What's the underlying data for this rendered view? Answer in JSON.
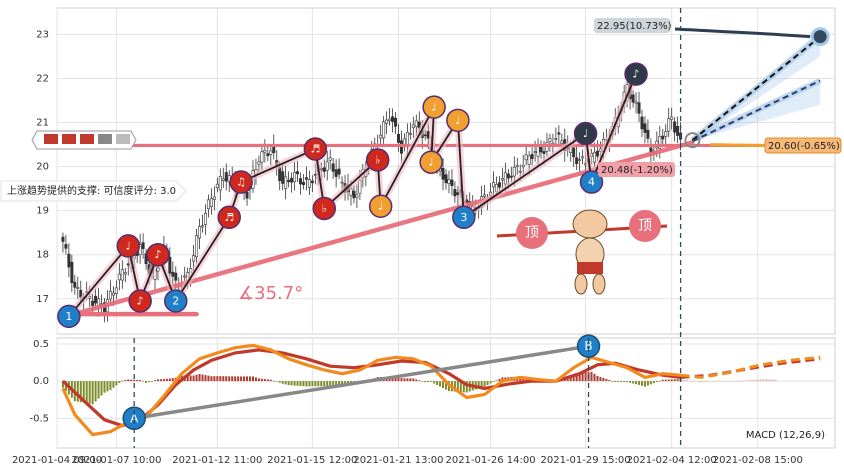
{
  "chart_data": [
    {
      "type": "candlestick",
      "panel": "price",
      "ylim": [
        16.2,
        23.6
      ],
      "yticks": [
        17,
        18,
        19,
        20,
        21,
        22,
        23
      ],
      "grid": true,
      "colors": {
        "up": "#2f2f2f",
        "down": "#2f2f2f",
        "support": "#e8707c",
        "trend": "#e8707c",
        "pattern": "#222222",
        "channel": "#a6c8e8",
        "forecast": "#34495e"
      },
      "price_path": [
        [
          0,
          18.3
        ],
        [
          4,
          17.2
        ],
        [
          9,
          17.0
        ],
        [
          14,
          16.8
        ],
        [
          20,
          17.6
        ],
        [
          26,
          18.2
        ],
        [
          30,
          17.5
        ],
        [
          34,
          18.1
        ],
        [
          38,
          17.3
        ],
        [
          42,
          17.5
        ],
        [
          46,
          18.6
        ],
        [
          50,
          19.3
        ],
        [
          54,
          19.8
        ],
        [
          58,
          19.6
        ],
        [
          62,
          19.4
        ],
        [
          66,
          20.2
        ],
        [
          70,
          20.4
        ],
        [
          74,
          19.6
        ],
        [
          78,
          19.8
        ],
        [
          82,
          19.6
        ],
        [
          86,
          19.9
        ],
        [
          90,
          20.1
        ],
        [
          94,
          19.6
        ],
        [
          98,
          19.3
        ],
        [
          102,
          20.0
        ],
        [
          106,
          20.6
        ],
        [
          110,
          21.2
        ],
        [
          114,
          20.4
        ],
        [
          118,
          21.0
        ],
        [
          122,
          20.7
        ],
        [
          126,
          20.0
        ],
        [
          130,
          19.6
        ],
        [
          134,
          19.3
        ],
        [
          138,
          19.0
        ],
        [
          142,
          19.3
        ],
        [
          146,
          19.6
        ],
        [
          150,
          19.8
        ],
        [
          154,
          20.0
        ],
        [
          158,
          20.3
        ],
        [
          162,
          20.4
        ],
        [
          166,
          20.7
        ],
        [
          170,
          20.4
        ],
        [
          174,
          20.1
        ],
        [
          178,
          20.2
        ],
        [
          182,
          20.5
        ],
        [
          186,
          21.0
        ],
        [
          190,
          21.8
        ],
        [
          194,
          21.2
        ],
        [
          198,
          20.3
        ],
        [
          201,
          20.6
        ],
        [
          205,
          21.1
        ],
        [
          208,
          20.5
        ]
      ],
      "support_level": 20.48,
      "support_label": "20.48(-1.20%)",
      "resistance_label": "20.60(-0.65%)",
      "target_label": "22.95(10.73%)",
      "target_value": 22.95,
      "trendline_angle": "∡35.7°",
      "confidence_text": "上涨趋势提供的支撑: 可信度评分: 3.0",
      "top_label": "顶",
      "markers": [
        {
          "label": "1",
          "color": "#1f7fc8",
          "x": 2,
          "y": 16.6
        },
        {
          "label": "2",
          "color": "#1f7fc8",
          "x": 38,
          "y": 16.95
        },
        {
          "label": "3",
          "color": "#1f7fc8",
          "x": 135,
          "y": 18.85
        },
        {
          "label": "4",
          "color": "#1f7fc8",
          "x": 178,
          "y": 19.65
        },
        {
          "label": "♩",
          "color": "#d0281c",
          "x": 22,
          "y": 18.2
        },
        {
          "label": "♪",
          "color": "#d0281c",
          "x": 32,
          "y": 18.0
        },
        {
          "label": "♪",
          "color": "#d0281c",
          "x": 26,
          "y": 16.95
        },
        {
          "label": "♬",
          "color": "#d0281c",
          "x": 56,
          "y": 18.85
        },
        {
          "label": "♫",
          "color": "#d0281c",
          "x": 60,
          "y": 19.65
        },
        {
          "label": "♬",
          "color": "#d0281c",
          "x": 85,
          "y": 20.4
        },
        {
          "label": "♭",
          "color": "#d0281c",
          "x": 88,
          "y": 19.05
        },
        {
          "label": "♭",
          "color": "#d0281c",
          "x": 106,
          "y": 20.15
        },
        {
          "label": "♩",
          "color": "#f0a030",
          "x": 107,
          "y": 19.1
        },
        {
          "label": "♩",
          "color": "#f0a030",
          "x": 124,
          "y": 20.1
        },
        {
          "label": "♩",
          "color": "#f0a030",
          "x": 125,
          "y": 21.35
        },
        {
          "label": "♩",
          "color": "#f0a030",
          "x": 133,
          "y": 21.05
        },
        {
          "label": "♩",
          "color": "#2f3a48",
          "x": 176,
          "y": 20.75
        },
        {
          "label": "♪",
          "color": "#2f3a48",
          "x": 193,
          "y": 22.1
        }
      ]
    },
    {
      "type": "line",
      "panel": "macd",
      "title": "MACD (12,26,9)",
      "ylim": [
        -0.9,
        0.58
      ],
      "yticks": [
        0.5,
        0.0,
        -0.5
      ],
      "grid": true,
      "colors": {
        "macd": "#f28a1e",
        "signal": "#c0392b",
        "hist_pos": "#b03a2e",
        "hist_neg": "#7d8c2a",
        "trend": "#888888"
      },
      "markers": [
        {
          "label": "A",
          "color": "#1f7fc8",
          "x": 24,
          "y": -0.5
        },
        {
          "label": "B",
          "color": "#1f7fc8",
          "x": 177,
          "y": 0.47
        }
      ],
      "macd_path": [
        [
          0,
          -0.1
        ],
        [
          4,
          -0.45
        ],
        [
          10,
          -0.72
        ],
        [
          16,
          -0.68
        ],
        [
          22,
          -0.55
        ],
        [
          28,
          -0.48
        ],
        [
          34,
          -0.2
        ],
        [
          40,
          0.1
        ],
        [
          46,
          0.3
        ],
        [
          52,
          0.38
        ],
        [
          58,
          0.45
        ],
        [
          64,
          0.48
        ],
        [
          70,
          0.42
        ],
        [
          76,
          0.3
        ],
        [
          82,
          0.22
        ],
        [
          88,
          0.15
        ],
        [
          94,
          0.1
        ],
        [
          100,
          0.15
        ],
        [
          106,
          0.28
        ],
        [
          112,
          0.32
        ],
        [
          118,
          0.3
        ],
        [
          124,
          0.2
        ],
        [
          130,
          -0.05
        ],
        [
          136,
          -0.22
        ],
        [
          142,
          -0.18
        ],
        [
          148,
          0.0
        ],
        [
          154,
          0.05
        ],
        [
          160,
          0.02
        ],
        [
          166,
          0.0
        ],
        [
          172,
          0.18
        ],
        [
          178,
          0.32
        ],
        [
          184,
          0.25
        ],
        [
          190,
          0.18
        ],
        [
          196,
          0.05
        ],
        [
          202,
          0.1
        ],
        [
          208,
          0.08
        ]
      ],
      "macd_forecast": [
        [
          208,
          0.08
        ],
        [
          215,
          0.05
        ],
        [
          225,
          0.12
        ],
        [
          235,
          0.22
        ],
        [
          245,
          0.28
        ],
        [
          255,
          0.32
        ]
      ],
      "signal_path": [
        [
          0,
          0.0
        ],
        [
          8,
          -0.3
        ],
        [
          14,
          -0.52
        ],
        [
          20,
          -0.6
        ],
        [
          26,
          -0.52
        ],
        [
          32,
          -0.32
        ],
        [
          38,
          -0.05
        ],
        [
          44,
          0.15
        ],
        [
          50,
          0.28
        ],
        [
          58,
          0.38
        ],
        [
          66,
          0.42
        ],
        [
          74,
          0.38
        ],
        [
          82,
          0.3
        ],
        [
          90,
          0.2
        ],
        [
          98,
          0.18
        ],
        [
          106,
          0.22
        ],
        [
          114,
          0.27
        ],
        [
          122,
          0.25
        ],
        [
          130,
          0.1
        ],
        [
          136,
          -0.05
        ],
        [
          142,
          -0.1
        ],
        [
          150,
          -0.04
        ],
        [
          158,
          0.0
        ],
        [
          166,
          0.0
        ],
        [
          174,
          0.1
        ],
        [
          180,
          0.22
        ],
        [
          186,
          0.24
        ],
        [
          194,
          0.15
        ],
        [
          202,
          0.08
        ],
        [
          208,
          0.05
        ]
      ],
      "signal_forecast": [
        [
          208,
          0.05
        ],
        [
          218,
          0.08
        ],
        [
          230,
          0.16
        ],
        [
          242,
          0.24
        ],
        [
          255,
          0.3
        ]
      ]
    }
  ],
  "xaxis": {
    "xlim": [
      -2,
      260
    ],
    "ticks": [
      {
        "x": -2,
        "label": "2021-01-04 09:00"
      },
      {
        "x": 18,
        "label": "2021-01-07 10:00"
      },
      {
        "x": 52,
        "label": "2021-01-12 11:00"
      },
      {
        "x": 84,
        "label": "2021-01-15 12:00"
      },
      {
        "x": 113,
        "label": "2021-01-21 13:00"
      },
      {
        "x": 144,
        "label": "2021-01-26 14:00"
      },
      {
        "x": 176,
        "label": "2021-01-29 15:00"
      },
      {
        "x": 205,
        "label": "2021-02-04 12:00"
      },
      {
        "x": 234,
        "label": "2021-02-08 15:00"
      }
    ]
  }
}
